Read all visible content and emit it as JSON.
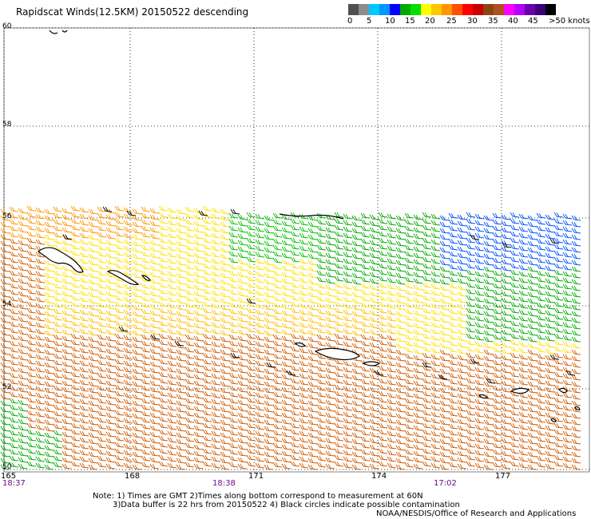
{
  "title": "Rapidscat Winds(12.5KM) 20150522 descending",
  "scale": {
    "labels": [
      "0",
      "5",
      "10",
      "15",
      "20",
      "25",
      "30",
      "35",
      "40",
      "45",
      ">50 knots"
    ],
    "colors": [
      "#505050",
      "#8c8c8c",
      "#00c8ff",
      "#0096ff",
      "#0000ff",
      "#00aa00",
      "#00e000",
      "#ffff00",
      "#ffc800",
      "#ff9600",
      "#ff5000",
      "#ff0000",
      "#c80000",
      "#8b4513",
      "#b05020",
      "#ff00ff",
      "#b400ff",
      "#6a00aa",
      "#3c0078",
      "#000000"
    ]
  },
  "map": {
    "lat_labels": [
      "60",
      "58",
      "56",
      "54",
      "52",
      "50"
    ],
    "lon_labels": [
      "165",
      "168",
      "171",
      "174",
      "177"
    ],
    "time_labels": [
      "18:37",
      "18:38",
      "17:02"
    ]
  },
  "notes": {
    "line1": "Note: 1) Times are GMT 2)Times along bottom correspond to measurement at 60N",
    "line2": "3)Data buffer is 22 hrs from 20150522 4) Black circles indicate possible contamination",
    "line3": "NOAA/NESDIS/Office of Research and Applications"
  }
}
